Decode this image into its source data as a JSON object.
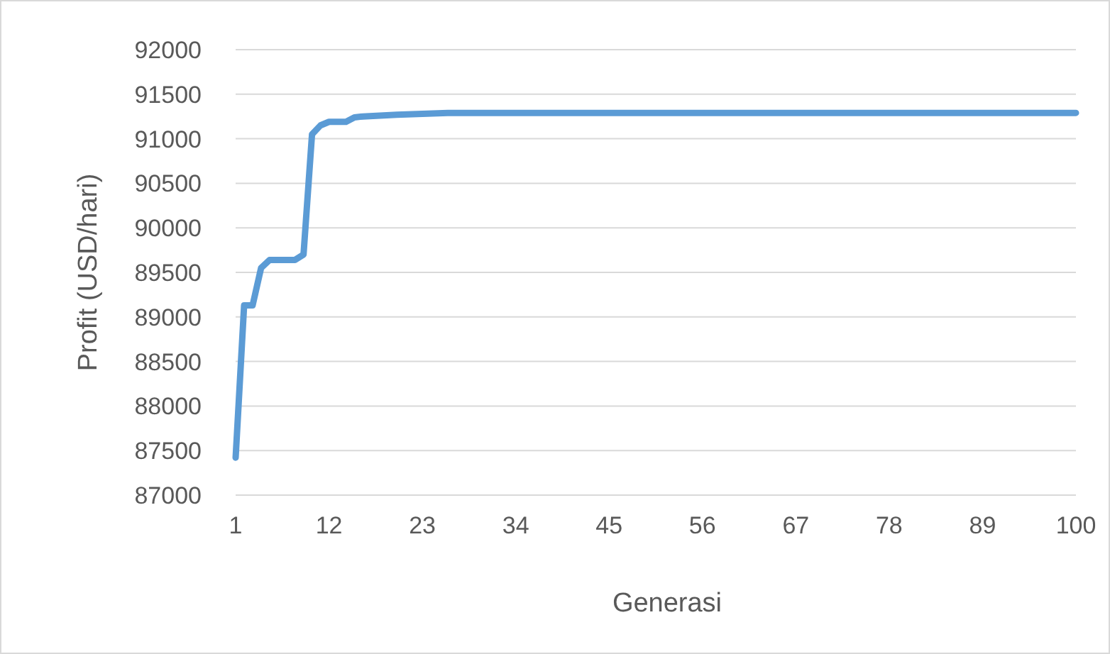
{
  "chart_data": {
    "type": "line",
    "xlabel": "Generasi",
    "ylabel": "Profit (USD/hari)",
    "x": [
      1,
      2,
      3,
      4,
      5,
      6,
      7,
      8,
      9,
      10,
      11,
      12,
      13,
      14,
      15,
      16,
      18,
      20,
      23,
      26,
      100
    ],
    "series": [
      {
        "color": "#5b9bd5",
        "values": [
          87420,
          89130,
          89130,
          89550,
          89640,
          89640,
          89640,
          89640,
          89700,
          91050,
          91150,
          91190,
          91190,
          91190,
          91240,
          91250,
          91260,
          91270,
          91280,
          91290,
          91290
        ]
      }
    ],
    "xlim": [
      1,
      100
    ],
    "xticks": [
      1,
      12,
      23,
      34,
      45,
      56,
      67,
      78,
      89,
      100
    ],
    "ylim": [
      87000,
      92000
    ],
    "yticks": [
      87000,
      87500,
      88000,
      88500,
      89000,
      89500,
      90000,
      90500,
      91000,
      91500,
      92000
    ],
    "grid": "y",
    "marker": "none",
    "line_style": "solid"
  }
}
